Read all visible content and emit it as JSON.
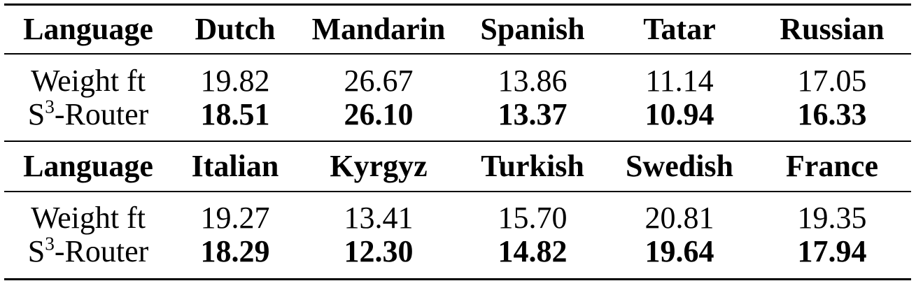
{
  "blocks": [
    {
      "header": [
        "Language",
        "Dutch",
        "Mandarin",
        "Spanish",
        "Tatar",
        "Russian"
      ],
      "rows": [
        {
          "label": "Weight ft",
          "values": [
            "19.82",
            "26.67",
            "13.86",
            "11.14",
            "17.05"
          ]
        },
        {
          "label_base": "S",
          "label_sup": "3",
          "label_rest": "-Router",
          "values": [
            "18.51",
            "26.10",
            "13.37",
            "10.94",
            "16.33"
          ]
        }
      ]
    },
    {
      "header": [
        "Language",
        "Italian",
        "Kyrgyz",
        "Turkish",
        "Swedish",
        "France"
      ],
      "rows": [
        {
          "label": "Weight ft",
          "values": [
            "19.27",
            "13.41",
            "15.70",
            "20.81",
            "19.35"
          ]
        },
        {
          "label_base": "S",
          "label_sup": "3",
          "label_rest": "-Router",
          "values": [
            "18.29",
            "12.30",
            "14.82",
            "19.64",
            "17.94"
          ]
        }
      ]
    }
  ]
}
